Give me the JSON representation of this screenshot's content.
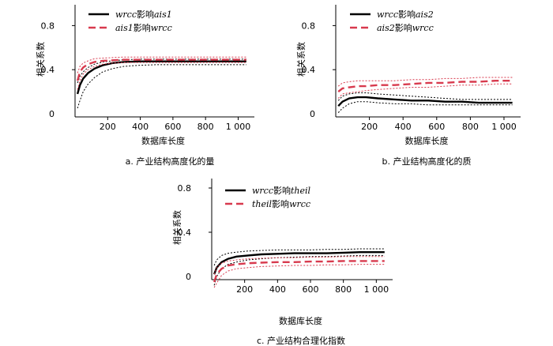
{
  "chart_data": [
    {
      "id": "a",
      "type": "line",
      "caption": "a.  产业结构高度化的量",
      "xlabel": "数据库长度",
      "ylabel": "相关系数",
      "x_ticks": [
        "200",
        "400",
        "600",
        "800",
        "1 000"
      ],
      "x_tick_values": [
        200,
        400,
        600,
        800,
        1000
      ],
      "y_ticks": [
        "0",
        "0.4",
        "0.8"
      ],
      "y_tick_values": [
        0,
        0.4,
        0.8
      ],
      "xlim": [
        0,
        1080
      ],
      "ylim": [
        0,
        1.0
      ],
      "series": [
        {
          "name": "wrcc影响ais1",
          "legend_italic": "wrcc",
          "legend_mid": "影响",
          "legend_tail": "ais1",
          "tail_italic": true,
          "color": "#000000",
          "style": "solid",
          "x": [
            15,
            30,
            50,
            80,
            120,
            170,
            230,
            300,
            400,
            500,
            600,
            700,
            800,
            900,
            1050
          ],
          "values": [
            0.18,
            0.26,
            0.32,
            0.37,
            0.41,
            0.44,
            0.46,
            0.47,
            0.475,
            0.475,
            0.475,
            0.475,
            0.475,
            0.475,
            0.475
          ],
          "band_upper": [
            0.28,
            0.34,
            0.38,
            0.42,
            0.45,
            0.47,
            0.48,
            0.49,
            0.495,
            0.495,
            0.495,
            0.495,
            0.495,
            0.495,
            0.495
          ],
          "band_lower": [
            0.05,
            0.12,
            0.2,
            0.27,
            0.33,
            0.38,
            0.41,
            0.43,
            0.44,
            0.445,
            0.445,
            0.445,
            0.445,
            0.445,
            0.445
          ]
        },
        {
          "name": "ais1影响wrcc",
          "legend_italic": "ais1",
          "legend_mid": "影响",
          "legend_tail": "wrcc",
          "tail_italic": true,
          "color": "#d83a4e",
          "style": "dashed",
          "x": [
            15,
            30,
            50,
            80,
            120,
            170,
            230,
            300,
            400,
            500,
            600,
            700,
            800,
            900,
            1050
          ],
          "values": [
            0.3,
            0.38,
            0.42,
            0.45,
            0.47,
            0.48,
            0.485,
            0.49,
            0.49,
            0.49,
            0.49,
            0.49,
            0.49,
            0.49,
            0.49
          ],
          "band_upper": [
            0.37,
            0.43,
            0.46,
            0.48,
            0.5,
            0.505,
            0.51,
            0.515,
            0.515,
            0.515,
            0.515,
            0.515,
            0.515,
            0.515,
            0.515
          ],
          "band_lower": [
            0.22,
            0.3,
            0.36,
            0.4,
            0.43,
            0.45,
            0.46,
            0.465,
            0.465,
            0.465,
            0.465,
            0.465,
            0.465,
            0.465,
            0.465
          ]
        }
      ]
    },
    {
      "id": "b",
      "type": "line",
      "caption": "b.  产业结构高度化的质",
      "xlabel": "数据库长度",
      "ylabel": "相关系数",
      "x_ticks": [
        "200",
        "400",
        "600",
        "800",
        "1 000"
      ],
      "x_tick_values": [
        200,
        400,
        600,
        800,
        1000
      ],
      "y_ticks": [
        "0",
        "0.4",
        "0.8"
      ],
      "y_tick_values": [
        0,
        0.4,
        0.8
      ],
      "xlim": [
        0,
        1080
      ],
      "ylim": [
        0,
        1.0
      ],
      "series": [
        {
          "name": "wrcc影响ais2",
          "legend_italic": "wrcc",
          "legend_mid": "影响",
          "legend_tail": "ais2",
          "tail_italic": true,
          "color": "#000000",
          "style": "solid",
          "x": [
            15,
            40,
            80,
            130,
            180,
            250,
            350,
            450,
            550,
            650,
            750,
            850,
            950,
            1050
          ],
          "values": [
            0.07,
            0.11,
            0.14,
            0.15,
            0.15,
            0.14,
            0.13,
            0.12,
            0.12,
            0.11,
            0.11,
            0.1,
            0.1,
            0.1
          ],
          "band_upper": [
            0.12,
            0.16,
            0.18,
            0.19,
            0.19,
            0.18,
            0.17,
            0.16,
            0.15,
            0.14,
            0.13,
            0.13,
            0.13,
            0.13
          ],
          "band_lower": [
            0.01,
            0.05,
            0.09,
            0.11,
            0.11,
            0.1,
            0.09,
            0.09,
            0.08,
            0.08,
            0.08,
            0.08,
            0.08,
            0.08
          ]
        },
        {
          "name": "ais2影响wrcc",
          "legend_italic": "ais2",
          "legend_mid": "影响",
          "legend_tail": "wrcc",
          "tail_italic": true,
          "color": "#d83a4e",
          "style": "dashed",
          "x": [
            15,
            40,
            80,
            130,
            180,
            250,
            350,
            450,
            550,
            650,
            750,
            850,
            950,
            1050
          ],
          "values": [
            0.2,
            0.23,
            0.24,
            0.25,
            0.25,
            0.26,
            0.26,
            0.27,
            0.28,
            0.28,
            0.29,
            0.29,
            0.3,
            0.3
          ],
          "band_upper": [
            0.25,
            0.28,
            0.29,
            0.3,
            0.3,
            0.3,
            0.3,
            0.31,
            0.31,
            0.32,
            0.32,
            0.33,
            0.33,
            0.33
          ],
          "band_lower": [
            0.14,
            0.18,
            0.19,
            0.2,
            0.21,
            0.22,
            0.23,
            0.24,
            0.24,
            0.25,
            0.26,
            0.26,
            0.27,
            0.27
          ]
        }
      ]
    },
    {
      "id": "c",
      "type": "line",
      "caption": "c.  产业结构合理化指数",
      "xlabel": "数据库长度",
      "ylabel": "相关系数",
      "x_ticks": [
        "200",
        "400",
        "600",
        "800",
        "1 000"
      ],
      "x_tick_values": [
        200,
        400,
        600,
        800,
        1000
      ],
      "y_ticks": [
        "0",
        "0.4",
        "0.8"
      ],
      "y_tick_values": [
        0,
        0.4,
        0.8
      ],
      "xlim": [
        0,
        1080
      ],
      "ylim": [
        0,
        1.0
      ],
      "series": [
        {
          "name": "wrcc影响theil",
          "legend_italic": "wrcc",
          "legend_mid": "影响",
          "legend_tail": "theil",
          "tail_italic": true,
          "color": "#000000",
          "style": "solid",
          "x": [
            15,
            30,
            60,
            100,
            150,
            220,
            300,
            400,
            500,
            600,
            700,
            800,
            900,
            1050
          ],
          "values": [
            0.02,
            0.08,
            0.13,
            0.16,
            0.18,
            0.19,
            0.2,
            0.205,
            0.21,
            0.21,
            0.21,
            0.215,
            0.22,
            0.22
          ],
          "band_upper": [
            0.1,
            0.15,
            0.19,
            0.21,
            0.22,
            0.23,
            0.235,
            0.24,
            0.24,
            0.24,
            0.245,
            0.245,
            0.25,
            0.25
          ],
          "band_lower": [
            -0.08,
            0.0,
            0.07,
            0.11,
            0.13,
            0.15,
            0.16,
            0.17,
            0.175,
            0.18,
            0.18,
            0.185,
            0.19,
            0.19
          ]
        },
        {
          "name": "theil影响wrcc",
          "legend_italic": "theil",
          "legend_mid": "影响",
          "legend_tail": "wrcc",
          "tail_italic": true,
          "color": "#d83a4e",
          "style": "dashed",
          "x": [
            15,
            30,
            60,
            100,
            150,
            220,
            300,
            400,
            500,
            600,
            700,
            800,
            900,
            1050
          ],
          "values": [
            -0.05,
            0.02,
            0.07,
            0.1,
            0.11,
            0.12,
            0.125,
            0.13,
            0.13,
            0.135,
            0.135,
            0.14,
            0.14,
            0.14
          ],
          "band_upper": [
            0.02,
            0.08,
            0.12,
            0.14,
            0.15,
            0.16,
            0.165,
            0.17,
            0.17,
            0.175,
            0.175,
            0.18,
            0.18,
            0.18
          ],
          "band_lower": [
            -0.1,
            -0.06,
            0.01,
            0.05,
            0.07,
            0.08,
            0.09,
            0.095,
            0.1,
            0.1,
            0.105,
            0.105,
            0.11,
            0.11
          ]
        }
      ]
    }
  ]
}
